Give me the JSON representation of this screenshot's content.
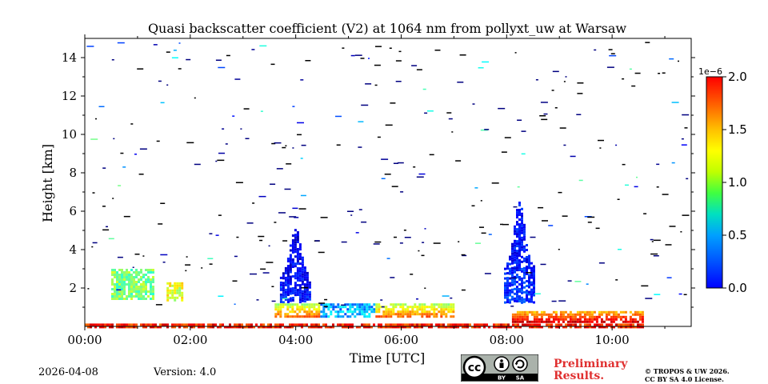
{
  "chart_data": {
    "type": "heatmap",
    "title": "Quasi backscatter coefficient (V2) at 1064 nm from pollyxt_uw at Warsaw",
    "xlabel": "Time [UTC]",
    "ylabel": "Height [km]",
    "xlim_hours": [
      0,
      11.5
    ],
    "ylim_km": [
      0,
      15
    ],
    "x_ticks": [
      {
        "value": 0,
        "label": "00:00"
      },
      {
        "value": 2,
        "label": "02:00"
      },
      {
        "value": 4,
        "label": "04:00"
      },
      {
        "value": 6,
        "label": "06:00"
      },
      {
        "value": 8,
        "label": "08:00"
      },
      {
        "value": 10,
        "label": "10:00"
      }
    ],
    "y_ticks": [
      {
        "value": 2,
        "label": "2"
      },
      {
        "value": 4,
        "label": "4"
      },
      {
        "value": 6,
        "label": "6"
      },
      {
        "value": 8,
        "label": "8"
      },
      {
        "value": 10,
        "label": "10"
      },
      {
        "value": 12,
        "label": "12"
      },
      {
        "value": 14,
        "label": "14"
      }
    ],
    "colorbar": {
      "multiplier": "1e−6",
      "min": 0.0,
      "max": 2.0,
      "colormap": "jet",
      "ticks": [
        {
          "value": 0.0,
          "label": "0.0"
        },
        {
          "value": 0.5,
          "label": "0.5"
        },
        {
          "value": 1.0,
          "label": "1.0"
        },
        {
          "value": 1.5,
          "label": "1.5"
        },
        {
          "value": 2.0,
          "label": "2.0"
        }
      ]
    },
    "features": [
      {
        "name": "aerosol-layer-early",
        "t": [
          0.5,
          1.3
        ],
        "h": [
          1.4,
          3.0
        ],
        "value": 1.0
      },
      {
        "name": "aerosol-layer-early-2",
        "t": [
          1.55,
          1.85
        ],
        "h": [
          1.4,
          2.3
        ],
        "value": 1.2
      },
      {
        "name": "cloud-plume-0400",
        "t": [
          3.7,
          4.25
        ],
        "h": [
          1.3,
          5.2
        ],
        "value": 0.3
      },
      {
        "name": "boundary-layer-0400-0730",
        "t": [
          3.6,
          7.0
        ],
        "h": [
          0.5,
          1.2
        ],
        "value": 1.6
      },
      {
        "name": "cloud-plume-0815",
        "t": [
          7.95,
          8.5
        ],
        "h": [
          1.3,
          6.5
        ],
        "value": 0.35
      },
      {
        "name": "boundary-layer-0815-1040",
        "t": [
          8.1,
          10.6
        ],
        "h": [
          0.2,
          0.8
        ],
        "value": 1.9
      },
      {
        "name": "surface-layer",
        "t": [
          0.0,
          10.6
        ],
        "h": [
          0.0,
          0.15
        ],
        "value": 1.7
      }
    ]
  },
  "footer": {
    "date": "2026-04-08",
    "version": "Version: 4.0",
    "badge": {
      "cc": "cc",
      "by": "BY",
      "sa": "SA"
    },
    "preliminary_line1": "Preliminary",
    "preliminary_line2": "Results.",
    "copyright_line1": "© TROPOS & UW 2026.",
    "copyright_line2": "CC BY SA 4.0 License."
  }
}
